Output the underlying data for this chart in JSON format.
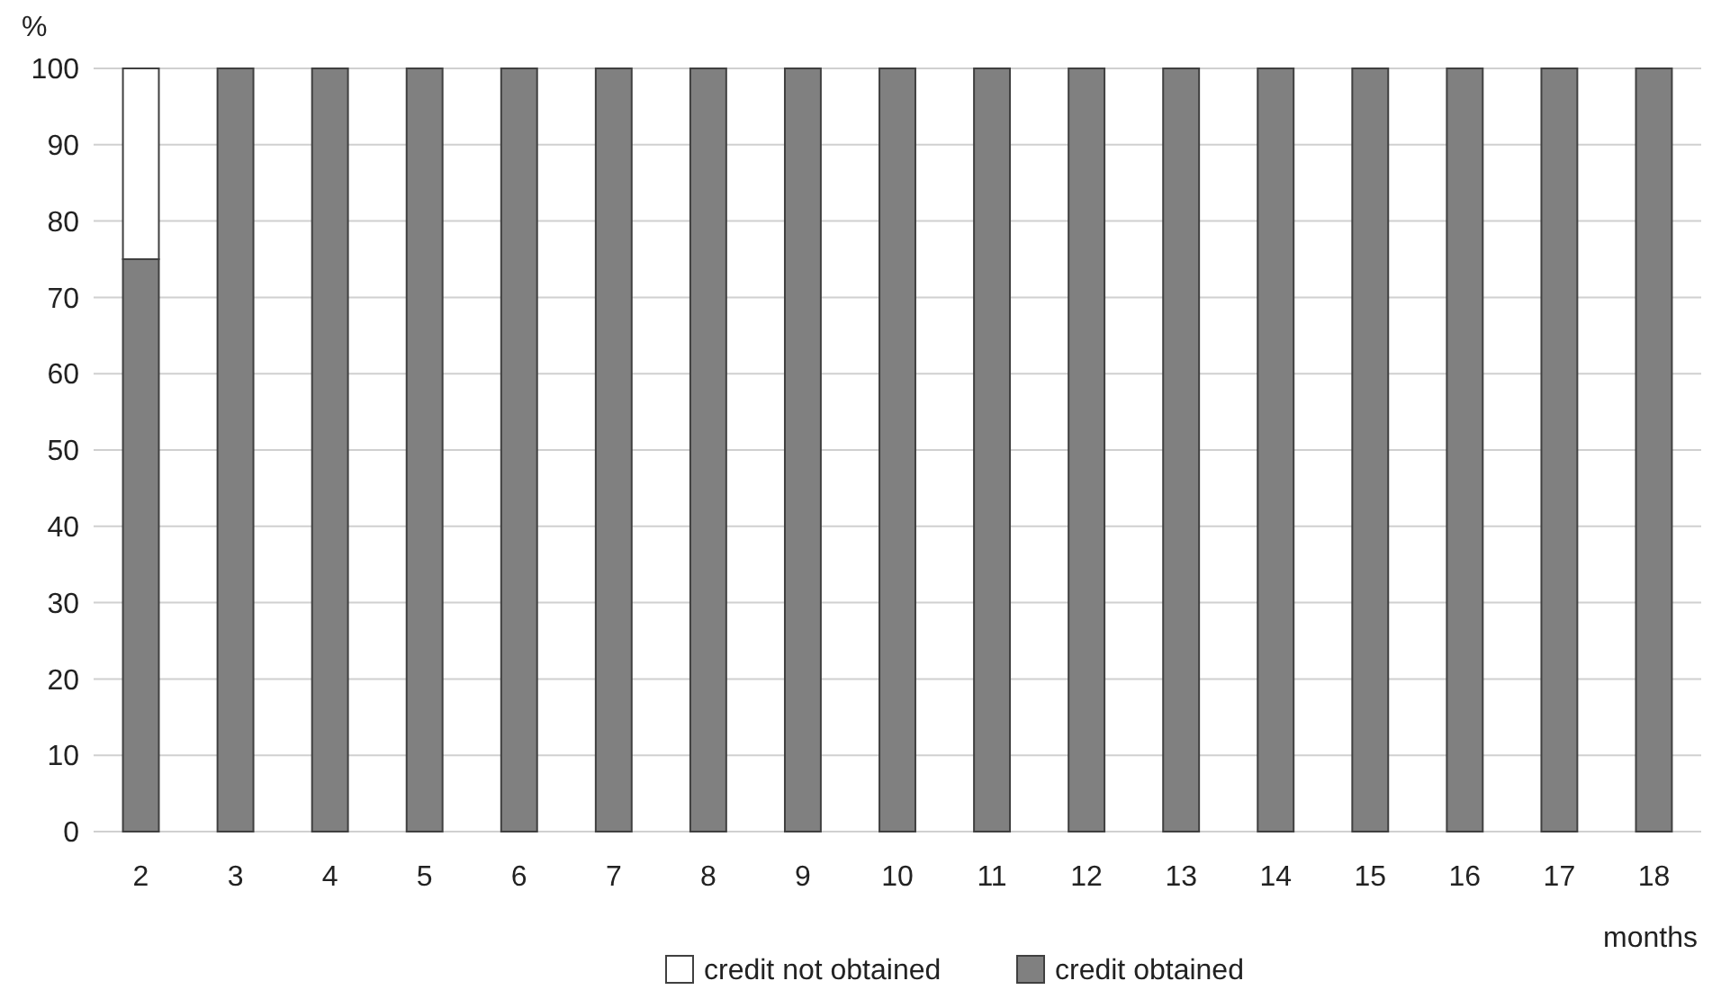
{
  "chart_data": {
    "type": "bar",
    "stacked": true,
    "xlabel": "months",
    "ylabel": "%",
    "categories": [
      "2",
      "3",
      "4",
      "5",
      "6",
      "7",
      "8",
      "9",
      "10",
      "11",
      "12",
      "13",
      "14",
      "15",
      "16",
      "17",
      "18"
    ],
    "series": [
      {
        "name": "credit obtained",
        "color": "#808080",
        "values": [
          75,
          100,
          100,
          100,
          100,
          100,
          100,
          100,
          100,
          100,
          100,
          100,
          100,
          100,
          100,
          100,
          100
        ]
      },
      {
        "name": "credit not obtained",
        "color": "#ffffff",
        "values": [
          25,
          0,
          0,
          0,
          0,
          0,
          0,
          0,
          0,
          0,
          0,
          0,
          0,
          0,
          0,
          0,
          0
        ]
      }
    ],
    "ylim": [
      0,
      100
    ],
    "yticks": [
      0,
      10,
      20,
      30,
      40,
      50,
      60,
      70,
      80,
      90,
      100
    ],
    "grid": "y",
    "legend": "bottom"
  }
}
